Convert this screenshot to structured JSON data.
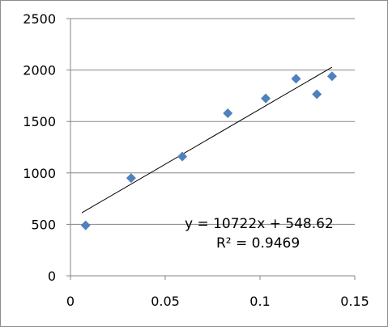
{
  "chart_data": {
    "type": "scatter",
    "title": "",
    "xlabel": "",
    "ylabel": "",
    "xlim": [
      0,
      0.15
    ],
    "ylim": [
      0,
      2500
    ],
    "x_ticks": [
      0,
      0.05,
      0.1,
      0.15
    ],
    "x_tick_labels": [
      "0",
      "0.05",
      "0.1",
      "0.15"
    ],
    "y_ticks": [
      0,
      500,
      1000,
      1500,
      2000,
      2500
    ],
    "y_tick_labels": [
      "0",
      "500",
      "1000",
      "1500",
      "2000",
      "2500"
    ],
    "grid": "horizontal",
    "legend": "none",
    "series": [
      {
        "marker": "diamond",
        "color": "#4f81bd",
        "points": [
          {
            "x": 0.008,
            "y": 490
          },
          {
            "x": 0.032,
            "y": 950
          },
          {
            "x": 0.059,
            "y": 1160
          },
          {
            "x": 0.083,
            "y": 1580
          },
          {
            "x": 0.103,
            "y": 1725
          },
          {
            "x": 0.119,
            "y": 1915
          },
          {
            "x": 0.13,
            "y": 1765
          },
          {
            "x": 0.138,
            "y": 1940
          }
        ]
      }
    ],
    "trendline": {
      "type": "linear",
      "slope": 10722,
      "intercept": 548.62,
      "x_range": [
        0.006,
        0.138
      ],
      "color": "#000000"
    },
    "annotations": {
      "equation": "y = 10722x + 548.62",
      "r_squared": "R² = 0.9469"
    }
  }
}
